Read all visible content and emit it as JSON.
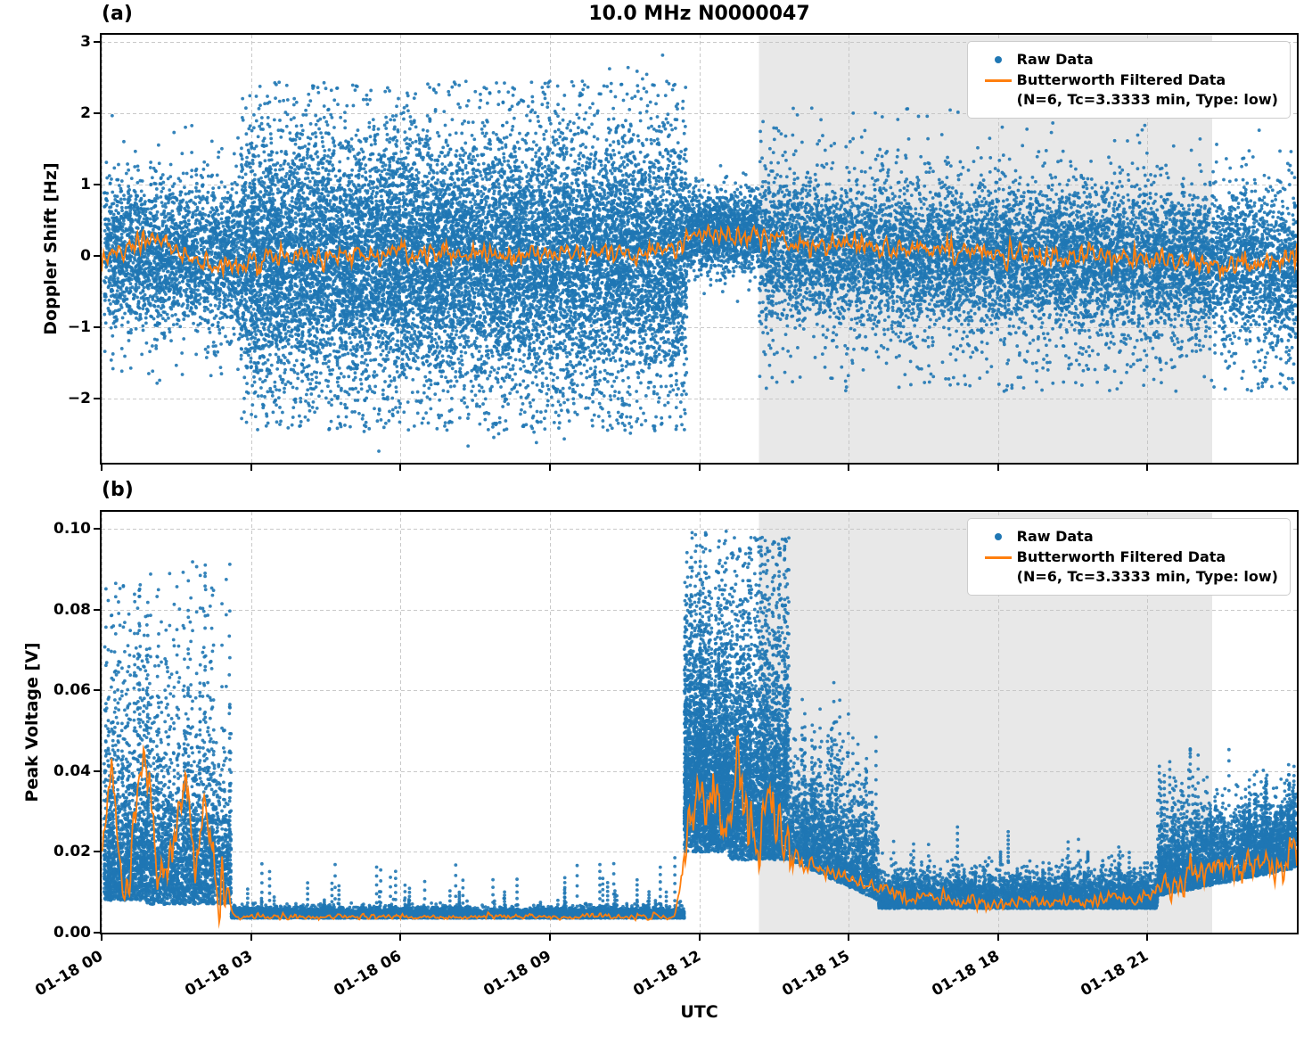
{
  "colors": {
    "raw": "#1f77b4",
    "filtered": "#ff7f0e",
    "shade": "#e8e8e8",
    "grid": "#c3c3c3",
    "axis": "#000000"
  },
  "chart_data": {
    "type": "scatter",
    "xlabel": "UTC",
    "x_unit": "hours since 01-18 00:00",
    "xlim": [
      0,
      24
    ],
    "xticks": [
      {
        "v": 0,
        "label": "01-18 00"
      },
      {
        "v": 3,
        "label": "01-18 03"
      },
      {
        "v": 6,
        "label": "01-18 06"
      },
      {
        "v": 9,
        "label": "01-18 09"
      },
      {
        "v": 12,
        "label": "01-18 12"
      },
      {
        "v": 15,
        "label": "01-18 15"
      },
      {
        "v": 18,
        "label": "01-18 18"
      },
      {
        "v": 21,
        "label": "01-18 21"
      }
    ],
    "shaded_region": {
      "x0": 13.2,
      "x1": 22.3
    },
    "legend": {
      "raw_label": "Raw Data",
      "filtered_label": "Butterworth Filtered Data",
      "filtered_sublabel": "(N=6, Tc=3.3333 min, Type: low)"
    },
    "panels": [
      {
        "panel_label": "(a)",
        "title": "10.0 MHz N0000047",
        "ylabel": "Doppler Shift [Hz]",
        "ylim": [
          -2.9,
          3.1
        ],
        "yticks": [
          {
            "v": 3,
            "label": "3"
          },
          {
            "v": 2,
            "label": "2"
          },
          {
            "v": 1,
            "label": "1"
          },
          {
            "v": 0,
            "label": "0"
          },
          {
            "v": -1,
            "label": "−1"
          },
          {
            "v": -2,
            "label": "−2"
          }
        ],
        "raw_series": {
          "name": "Raw Data",
          "segments": [
            {
              "t0": 0.05,
              "t1": 2.8,
              "n": 2300,
              "mean": 0.05,
              "mean_end": -0.05,
              "sd": 0.5,
              "clip": [
                -1.7,
                2.0
              ]
            },
            {
              "t0": 0.05,
              "t1": 2.8,
              "n": 250,
              "mean": 0.0,
              "sd": 0.85,
              "clip": [
                -1.8,
                2.3
              ]
            },
            {
              "t0": 2.8,
              "t1": 11.75,
              "n": 9000,
              "mean": -0.05,
              "sd": 0.75,
              "clip": [
                -2.2,
                2.3
              ]
            },
            {
              "t0": 2.8,
              "t1": 11.75,
              "n": 5000,
              "mean": -0.1,
              "sd": 1.15,
              "clip": [
                -2.45,
                2.45
              ]
            },
            {
              "t0": 3.5,
              "t1": 11.5,
              "n": 50,
              "mean": -2.2,
              "sd": 0.25,
              "clip": [
                -2.78,
                -1.8
              ]
            },
            {
              "t0": 10.0,
              "t1": 11.6,
              "n": 10,
              "mean": 2.5,
              "sd": 0.15,
              "clip": [
                2.3,
                2.82
              ]
            },
            {
              "t0": 11.75,
              "t1": 13.2,
              "n": 1400,
              "mean": 0.35,
              "sd": 0.28,
              "clip": [
                -0.8,
                1.6
              ]
            },
            {
              "t0": 13.2,
              "t1": 24,
              "n": 7500,
              "mean": 0.15,
              "mean_end": -0.15,
              "sd": 0.45,
              "clip": [
                -1.6,
                2.0
              ]
            },
            {
              "t0": 13.2,
              "t1": 24,
              "n": 2500,
              "mean": 0.0,
              "mean_end": -0.3,
              "sd": 0.8,
              "clip": [
                -1.9,
                2.1
              ]
            }
          ]
        },
        "filtered_series": {
          "name": "Butterworth Filtered Data (N=6, Tc=3.3333 min, Type: low)",
          "mean_points": [
            [
              0,
              -0.05
            ],
            [
              0.4,
              0.1
            ],
            [
              0.8,
              0.3
            ],
            [
              1.3,
              0.15
            ],
            [
              1.9,
              -0.05
            ],
            [
              2.5,
              -0.15
            ],
            [
              3.0,
              -0.05
            ],
            [
              4,
              0.0
            ],
            [
              6,
              0.05
            ],
            [
              8,
              0.0
            ],
            [
              10,
              0.05
            ],
            [
              11.5,
              0.05
            ],
            [
              11.9,
              0.35
            ],
            [
              12.8,
              0.3
            ],
            [
              13.5,
              0.25
            ],
            [
              14.5,
              0.15
            ],
            [
              16,
              0.1
            ],
            [
              18,
              0.05
            ],
            [
              20,
              0.0
            ],
            [
              21.5,
              -0.05
            ],
            [
              22.5,
              -0.1
            ],
            [
              23.2,
              -0.15
            ],
            [
              24,
              0.0
            ]
          ],
          "jitter": [
            [
              0,
              24,
              0.13
            ]
          ],
          "clip": [
            -0.65,
            0.85
          ]
        }
      },
      {
        "panel_label": "(b)",
        "title": "",
        "ylabel": "Peak Voltage [V]",
        "ylim": [
          0,
          0.1043
        ],
        "yticks": [
          {
            "v": 0.1,
            "label": "0.10"
          },
          {
            "v": 0.08,
            "label": "0.08"
          },
          {
            "v": 0.06,
            "label": "0.06"
          },
          {
            "v": 0.04,
            "label": "0.04"
          },
          {
            "v": 0.02,
            "label": "0.02"
          },
          {
            "v": 0.0,
            "label": "0.00"
          }
        ],
        "raw_series": {
          "name": "Raw Data",
          "segments": [
            {
              "t0": 0.05,
              "t1": 0.9,
              "n": 900,
              "mean": 0.008,
              "sd": 0.012,
              "mode": "abs",
              "spike_p": 0.12,
              "spike_amp": 0.07,
              "clip": [
                0.002,
                0.088
              ]
            },
            {
              "t0": 0.9,
              "t1": 2.6,
              "n": 1700,
              "mean": 0.007,
              "sd": 0.014,
              "mode": "abs",
              "spike_p": 0.1,
              "spike_amp": 0.075,
              "clip": [
                0.002,
                0.092
              ]
            },
            {
              "t0": 2.6,
              "t1": 11.7,
              "n": 7000,
              "mean": 0.0036,
              "sd": 0.0012,
              "mode": "abs",
              "spike_p": 0.012,
              "spike_amp": 0.013,
              "clip": [
                0.0015,
                0.021
              ]
            },
            {
              "t0": 11.7,
              "t1": 12.6,
              "n": 1300,
              "mean": 0.02,
              "sd": 0.016,
              "mode": "abs",
              "spike_p": 0.3,
              "spike_amp": 0.06,
              "clip": [
                0.004,
                0.0995
              ]
            },
            {
              "t0": 12.6,
              "t1": 13.8,
              "n": 1500,
              "mean": 0.018,
              "sd": 0.014,
              "mode": "abs",
              "spike_p": 0.25,
              "spike_amp": 0.07,
              "clip": [
                0.003,
                0.098
              ]
            },
            {
              "t0": 13.8,
              "t1": 15.6,
              "n": 1700,
              "mean": 0.018,
              "mean_end": 0.008,
              "sd": 0.01,
              "mode": "abs",
              "spike_p": 0.06,
              "spike_amp": 0.03,
              "clip": [
                0.003,
                0.062
              ]
            },
            {
              "t0": 15.6,
              "t1": 21.2,
              "n": 4800,
              "mean": 0.006,
              "sd": 0.004,
              "mode": "abs",
              "spike_p": 0.02,
              "spike_amp": 0.012,
              "clip": [
                0.0025,
                0.028
              ]
            },
            {
              "t0": 21.2,
              "t1": 24,
              "n": 2800,
              "mean": 0.009,
              "mean_end": 0.016,
              "sd": 0.008,
              "mode": "abs",
              "spike_p": 0.08,
              "spike_amp": 0.018,
              "clip": [
                0.003,
                0.046
              ]
            }
          ]
        },
        "filtered_series": {
          "name": "Butterworth Filtered Data (N=6, Tc=3.3333 min, Type: low)",
          "mean_points": [
            [
              0,
              0.015
            ],
            [
              0.2,
              0.045
            ],
            [
              0.35,
              0.02
            ],
            [
              0.5,
              0.01
            ],
            [
              0.7,
              0.03
            ],
            [
              0.9,
              0.045
            ],
            [
              1.1,
              0.02
            ],
            [
              1.3,
              0.012
            ],
            [
              1.5,
              0.03
            ],
            [
              1.7,
              0.04
            ],
            [
              1.9,
              0.02
            ],
            [
              2.1,
              0.035
            ],
            [
              2.3,
              0.015
            ],
            [
              2.5,
              0.008
            ],
            [
              2.7,
              0.004
            ],
            [
              6,
              0.0038
            ],
            [
              11.5,
              0.004
            ],
            [
              11.75,
              0.02
            ],
            [
              11.95,
              0.04
            ],
            [
              12.15,
              0.025
            ],
            [
              12.35,
              0.035
            ],
            [
              12.55,
              0.02
            ],
            [
              12.75,
              0.045
            ],
            [
              12.95,
              0.03
            ],
            [
              13.15,
              0.02
            ],
            [
              13.4,
              0.035
            ],
            [
              13.7,
              0.025
            ],
            [
              14.0,
              0.018
            ],
            [
              14.5,
              0.015
            ],
            [
              15.0,
              0.013
            ],
            [
              15.5,
              0.011
            ],
            [
              16.0,
              0.009
            ],
            [
              17,
              0.008
            ],
            [
              18.5,
              0.0075
            ],
            [
              20,
              0.008
            ],
            [
              21,
              0.009
            ],
            [
              21.5,
              0.012
            ],
            [
              22,
              0.015
            ],
            [
              22.5,
              0.018
            ],
            [
              22.9,
              0.014
            ],
            [
              23.3,
              0.02
            ],
            [
              23.7,
              0.015
            ],
            [
              24,
              0.022
            ]
          ],
          "jitter": [
            [
              0,
              2.6,
              0.006
            ],
            [
              2.6,
              11.65,
              0.0006
            ],
            [
              11.65,
              13.9,
              0.007
            ],
            [
              13.9,
              21.2,
              0.0015
            ],
            [
              21.2,
              24,
              0.0035
            ]
          ],
          "clip": [
            0.0025,
            0.055
          ]
        }
      }
    ]
  }
}
